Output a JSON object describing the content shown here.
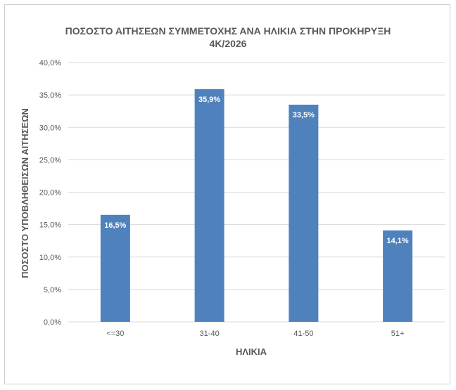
{
  "chart_data": {
    "type": "bar",
    "title_line1": "ΠΟΣΟΣΤΟ ΑΙΤΗΣΕΩΝ ΣΥΜΜΕΤΟΧΗΣ ΑΝΑ ΗΛΙΚΙΑ ΣΤΗΝ ΠΡΟΚΗΡΥΞΗ",
    "title_line2": "4Κ/2026",
    "xlabel": "ΗΛΙΚΙΑ",
    "ylabel": "ΠΟΣΟΣΤΟ ΥΠΟΒΛΗΘΕΙΣΩΝ ΑΙΤΗΣΕΩΝ",
    "categories": [
      "<=30",
      "31-40",
      "41-50",
      "51+"
    ],
    "values": [
      16.5,
      35.9,
      33.5,
      14.1
    ],
    "data_labels": [
      "16,5%",
      "35,9%",
      "33,5%",
      "14,1%"
    ],
    "yticks": [
      "0,0%",
      "5,0%",
      "10,0%",
      "15,0%",
      "20,0%",
      "25,0%",
      "30,0%",
      "35,0%",
      "40,0%"
    ],
    "ylim": [
      0,
      40
    ],
    "grid": true,
    "bar_color": "#4f81bd"
  }
}
